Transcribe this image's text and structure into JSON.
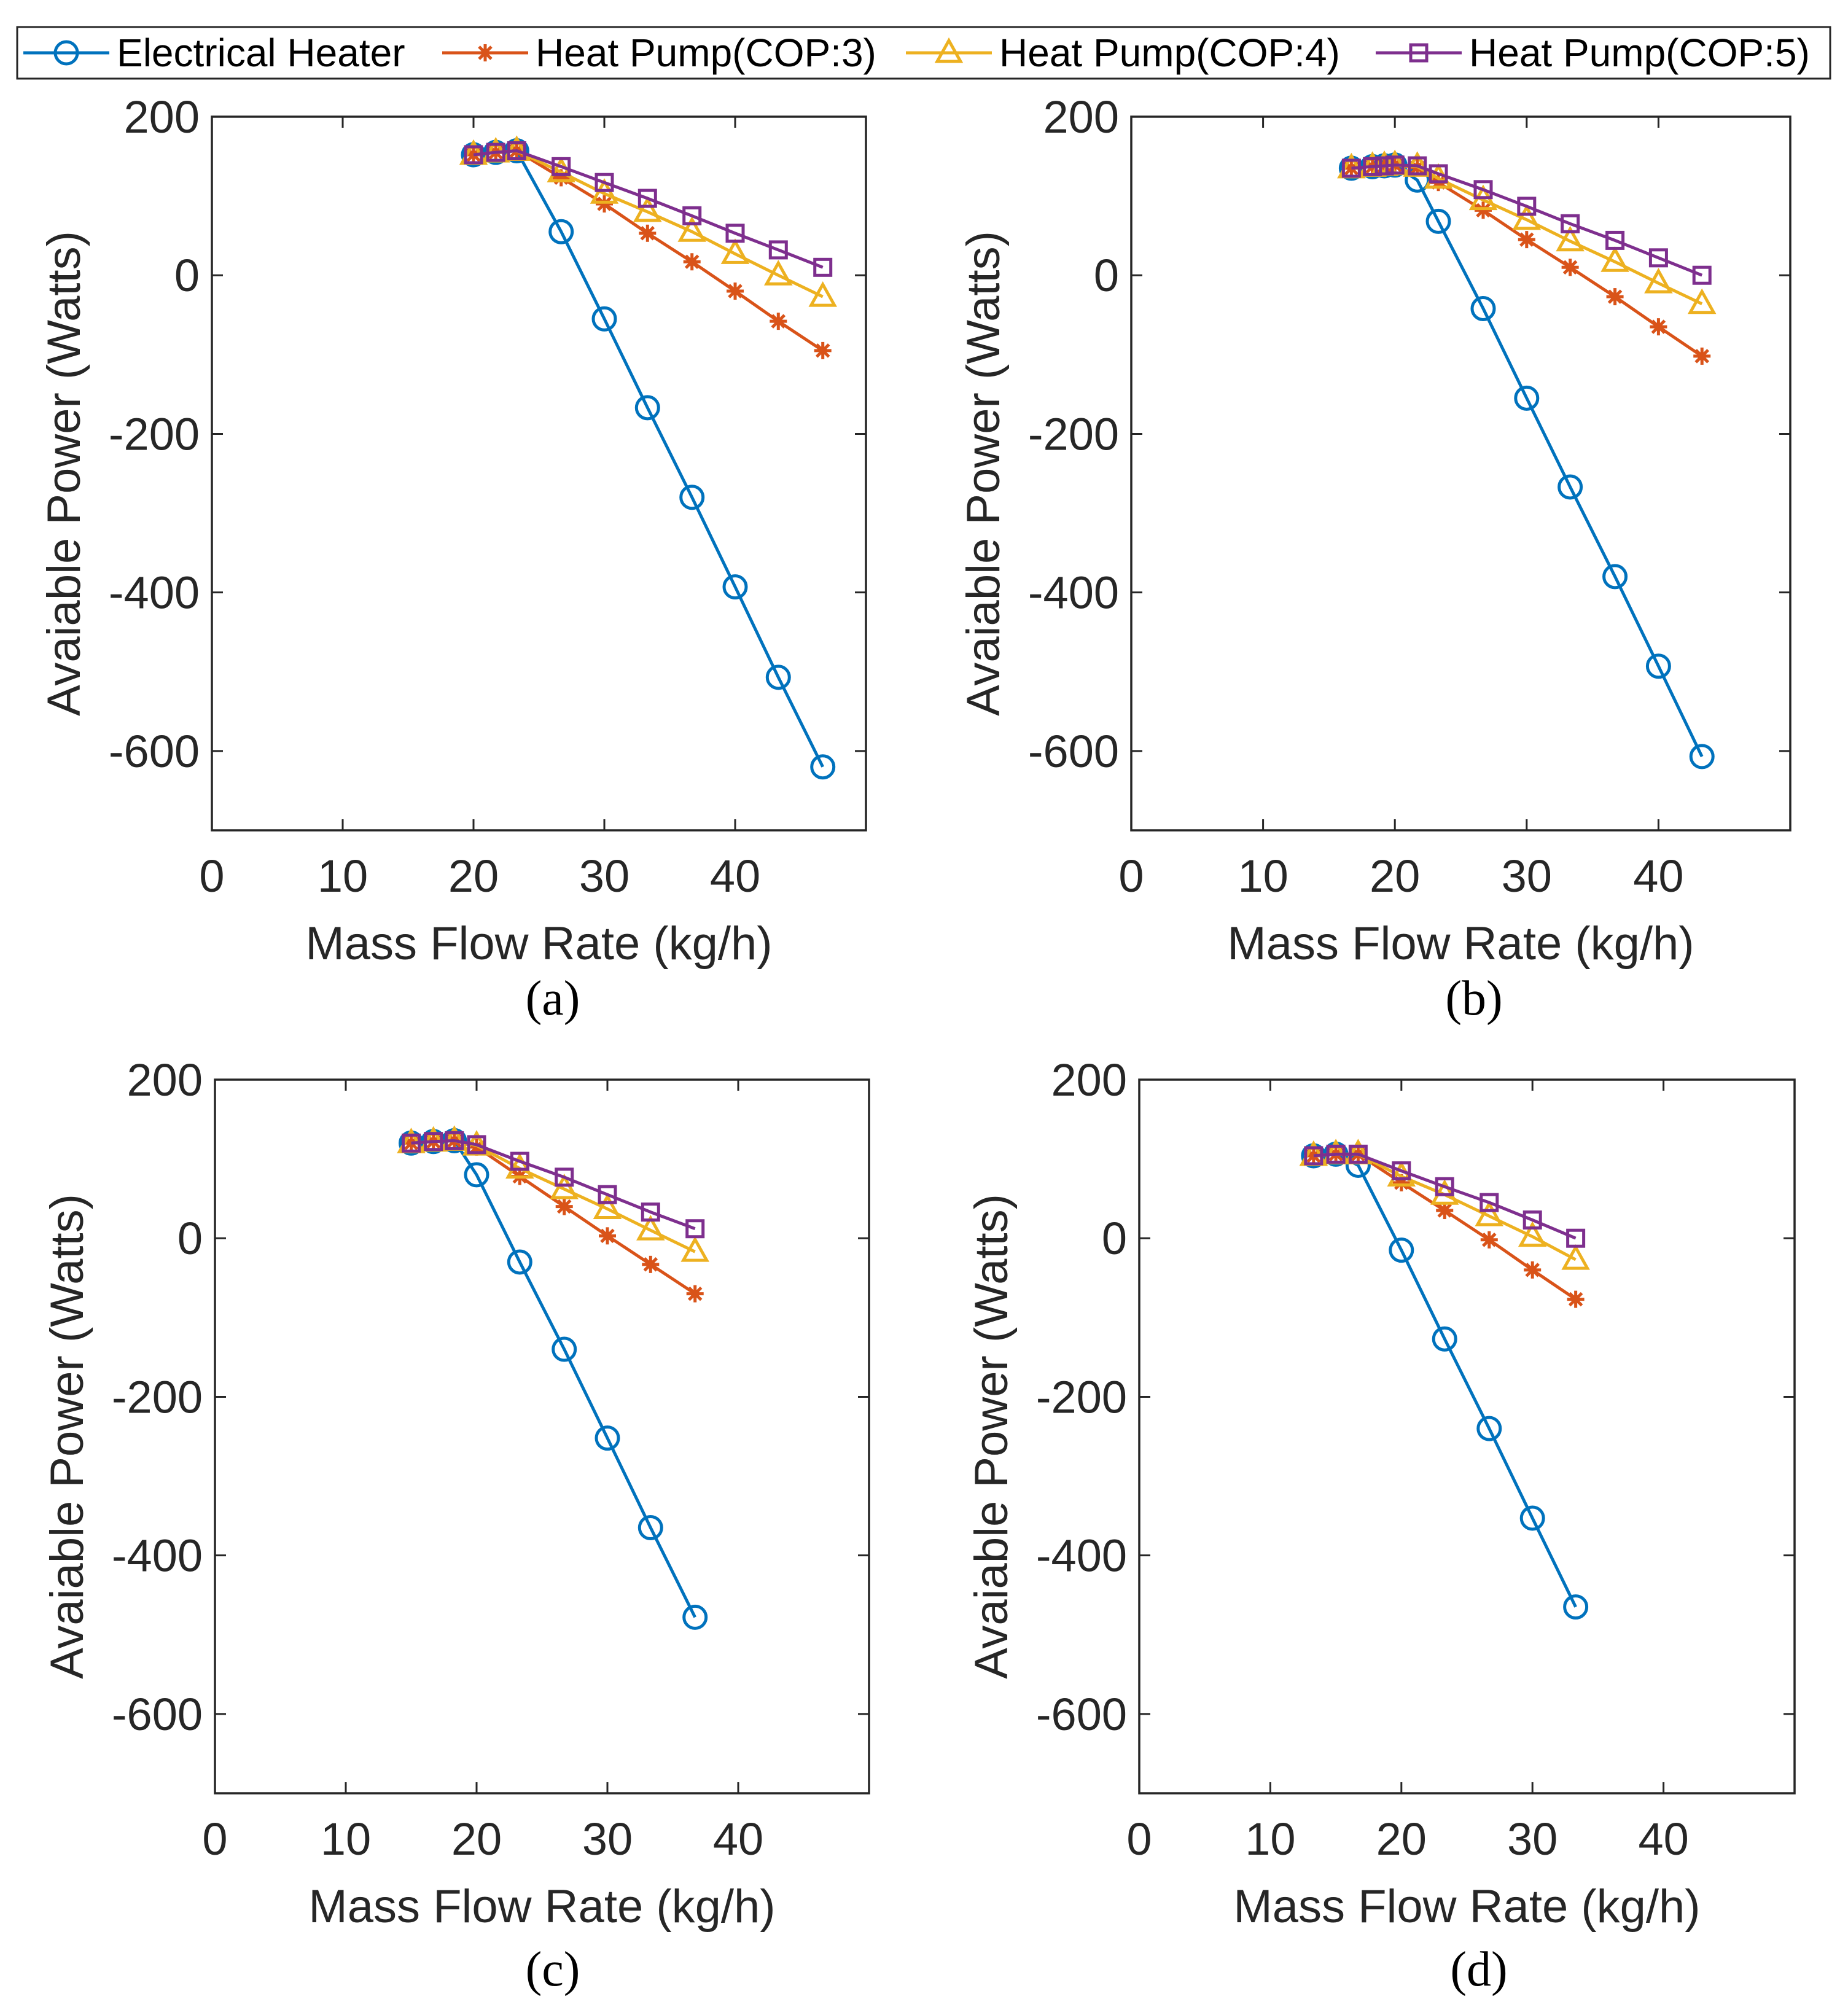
{
  "legend": {
    "items": [
      {
        "label": "Electrical Heater",
        "color": "#0072BD",
        "marker": "circle"
      },
      {
        "label": "Heat Pump(COP:3)",
        "color": "#D95319",
        "marker": "asterisk"
      },
      {
        "label": "Heat Pump(COP:4)",
        "color": "#EDB120",
        "marker": "triangle"
      },
      {
        "label": "Heat Pump(COP:5)",
        "color": "#7E2F8E",
        "marker": "square"
      }
    ]
  },
  "chart_data": [
    {
      "type": "line",
      "panel_label": "(a)",
      "xlabel": "Mass Flow Rate (kg/h)",
      "ylabel": "Avaiable Power (Watts)",
      "xlim": [
        0,
        50
      ],
      "ylim": [
        -700,
        200
      ],
      "xticks": [
        "0",
        "10",
        "20",
        "30",
        "40"
      ],
      "yticks": [
        "200",
        "0",
        "-200",
        "-400",
        "-600"
      ],
      "series": [
        {
          "name": "Electrical Heater",
          "x": [
            20,
            21.7,
            23.3,
            26.7,
            30,
            33.3,
            36.7,
            40,
            43.3,
            46.7
          ],
          "y": [
            152,
            155,
            157,
            55,
            -55,
            -167,
            -280,
            -393,
            -507,
            -620
          ]
        },
        {
          "name": "Heat Pump(COP:3)",
          "x": [
            20,
            21.7,
            23.3,
            26.7,
            30,
            33.3,
            36.7,
            40,
            43.3,
            46.7
          ],
          "y": [
            152,
            155,
            157,
            123,
            90,
            53,
            17,
            -20,
            -58,
            -95
          ]
        },
        {
          "name": "Heat Pump(COP:4)",
          "x": [
            20,
            21.7,
            23.3,
            26.7,
            30,
            33.3,
            36.7,
            40,
            43.3,
            46.7
          ],
          "y": [
            152,
            155,
            157,
            130,
            103,
            80,
            55,
            27,
            0,
            -27
          ]
        },
        {
          "name": "Heat Pump(COP:5)",
          "x": [
            20,
            21.7,
            23.3,
            26.7,
            30,
            33.3,
            36.7,
            40,
            43.3,
            46.7
          ],
          "y": [
            152,
            155,
            157,
            137,
            117,
            97,
            75,
            53,
            32,
            10
          ]
        }
      ]
    },
    {
      "type": "line",
      "panel_label": "(b)",
      "xlabel": "Mass Flow Rate (kg/h)",
      "ylabel": "Avaiable Power (Watts)",
      "xlim": [
        0,
        50
      ],
      "ylim": [
        -700,
        200
      ],
      "xticks": [
        "0",
        "10",
        "20",
        "30",
        "40"
      ],
      "yticks": [
        "200",
        "0",
        "-200",
        "-400",
        "-600"
      ],
      "series": [
        {
          "name": "Electrical Heater",
          "x": [
            16.7,
            18.3,
            19.2,
            20,
            21.7,
            23.3,
            26.7,
            30,
            33.3,
            36.7,
            40,
            43.3
          ],
          "y": [
            135,
            137,
            138,
            139,
            120,
            68,
            -42,
            -155,
            -267,
            -380,
            -493,
            -607
          ]
        },
        {
          "name": "Heat Pump(COP:3)",
          "x": [
            16.7,
            18.3,
            19.2,
            20,
            21.7,
            23.3,
            26.7,
            30,
            33.3,
            36.7,
            40,
            43.3
          ],
          "y": [
            135,
            137,
            138,
            139,
            136,
            117,
            82,
            45,
            10,
            -27,
            -65,
            -102
          ]
        },
        {
          "name": "Heat Pump(COP:4)",
          "x": [
            16.7,
            18.3,
            19.2,
            20,
            21.7,
            23.3,
            26.7,
            30,
            33.3,
            36.7,
            40,
            43.3
          ],
          "y": [
            135,
            137,
            138,
            139,
            137,
            122,
            95,
            70,
            43,
            17,
            -10,
            -36
          ]
        },
        {
          "name": "Heat Pump(COP:5)",
          "x": [
            16.7,
            18.3,
            19.2,
            20,
            21.7,
            23.3,
            26.7,
            30,
            33.3,
            36.7,
            40,
            43.3
          ],
          "y": [
            135,
            137,
            138,
            139,
            138,
            128,
            108,
            87,
            65,
            44,
            22,
            0
          ]
        }
      ]
    },
    {
      "type": "line",
      "panel_label": "(c)",
      "xlabel": "Mass Flow Rate (kg/h)",
      "ylabel": "Avaiable Power (Watts)",
      "xlim": [
        0,
        50
      ],
      "ylim": [
        -700,
        200
      ],
      "xticks": [
        "0",
        "10",
        "20",
        "30",
        "40"
      ],
      "yticks": [
        "200",
        "0",
        "-200",
        "-400",
        "-600"
      ],
      "series": [
        {
          "name": "Electrical Heater",
          "x": [
            15,
            16.7,
            18.3,
            20,
            23.3,
            26.7,
            30,
            33.3,
            36.7
          ],
          "y": [
            120,
            122,
            123,
            80,
            -30,
            -140,
            -252,
            -365,
            -478
          ]
        },
        {
          "name": "Heat Pump(COP:3)",
          "x": [
            15,
            16.7,
            18.3,
            20,
            23.3,
            26.7,
            30,
            33.3,
            36.7
          ],
          "y": [
            120,
            122,
            123,
            115,
            78,
            40,
            3,
            -33,
            -70
          ]
        },
        {
          "name": "Heat Pump(COP:4)",
          "x": [
            15,
            16.7,
            18.3,
            20,
            23.3,
            26.7,
            30,
            33.3,
            36.7
          ],
          "y": [
            120,
            122,
            123,
            117,
            88,
            62,
            37,
            10,
            -17
          ]
        },
        {
          "name": "Heat Pump(COP:5)",
          "x": [
            15,
            16.7,
            18.3,
            20,
            23.3,
            26.7,
            30,
            33.3,
            36.7
          ],
          "y": [
            120,
            122,
            123,
            118,
            97,
            77,
            55,
            33,
            12
          ]
        }
      ]
    },
    {
      "type": "line",
      "panel_label": "(d)",
      "xlabel": "Mass Flow Rate (kg/h)",
      "ylabel": "Avaiable Power (Watts)",
      "xlim": [
        0,
        50
      ],
      "ylim": [
        -700,
        200
      ],
      "xticks": [
        "0",
        "10",
        "20",
        "30",
        "40"
      ],
      "yticks": [
        "200",
        "0",
        "-200",
        "-400",
        "-600"
      ],
      "series": [
        {
          "name": "Electrical Heater",
          "x": [
            13.3,
            15,
            16.7,
            20,
            23.3,
            26.7,
            30,
            33.3
          ],
          "y": [
            104,
            106,
            92,
            -15,
            -127,
            -240,
            -353,
            -465
          ]
        },
        {
          "name": "Heat Pump(COP:3)",
          "x": [
            13.3,
            15,
            16.7,
            20,
            23.3,
            26.7,
            30,
            33.3
          ],
          "y": [
            104,
            106,
            106,
            70,
            35,
            -2,
            -40,
            -77
          ]
        },
        {
          "name": "Heat Pump(COP:4)",
          "x": [
            13.3,
            15,
            16.7,
            20,
            23.3,
            26.7,
            30,
            33.3
          ],
          "y": [
            104,
            106,
            106,
            78,
            55,
            28,
            2,
            -27
          ]
        },
        {
          "name": "Heat Pump(COP:5)",
          "x": [
            13.3,
            15,
            16.7,
            20,
            23.3,
            26.7,
            30,
            33.3
          ],
          "y": [
            104,
            106,
            106,
            85,
            65,
            45,
            23,
            0
          ]
        }
      ]
    }
  ]
}
